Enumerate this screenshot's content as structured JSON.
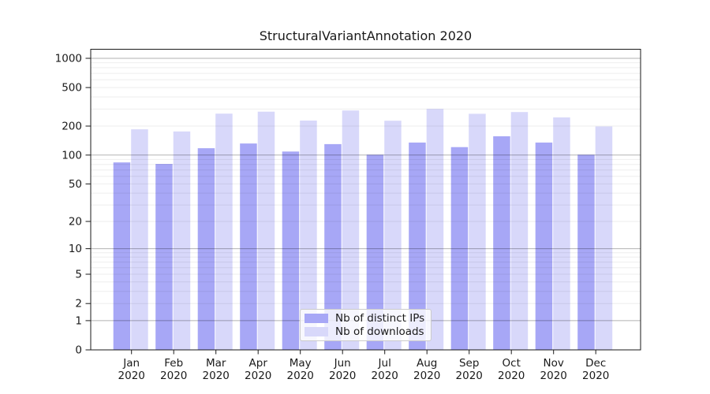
{
  "title": "StructuralVariantAnnotation 2020",
  "colors": {
    "ips_bar": "#a7a7f6",
    "downloads_bar": "#d8d8fa",
    "grid_major": "rgba(0,0,0,0.30)",
    "grid_minor": "rgba(0,0,0,0.07)",
    "axis_line": "#1a1a1a",
    "text": "#1a1a1a",
    "legend_border": "#cbcbcb",
    "legend_bg": "rgba(255,255,255,0.8)"
  },
  "legend": {
    "items": [
      {
        "label": "Nb of distinct IPs",
        "series": "ips"
      },
      {
        "label": "Nb of downloads",
        "series": "downloads"
      }
    ]
  },
  "chart_data": {
    "type": "bar",
    "title": "StructuralVariantAnnotation 2020",
    "categories": [
      "Jan 2020",
      "Feb 2020",
      "Mar 2020",
      "Apr 2020",
      "May 2020",
      "Jun 2020",
      "Jul 2020",
      "Aug 2020",
      "Sep 2020",
      "Oct 2020",
      "Nov 2020",
      "Dec 2020"
    ],
    "series": [
      {
        "name": "Nb of distinct IPs",
        "values": [
          84,
          81,
          118,
          132,
          109,
          130,
          101,
          135,
          121,
          157,
          135,
          101
        ]
      },
      {
        "name": "Nb of downloads",
        "values": [
          185,
          176,
          269,
          282,
          228,
          290,
          227,
          301,
          268,
          279,
          246,
          198
        ]
      }
    ],
    "yscale": "log1p",
    "yticks": [
      0,
      1,
      2,
      5,
      10,
      20,
      50,
      100,
      200,
      500,
      1000
    ],
    "ylim": [
      0,
      1240
    ],
    "grid": true,
    "legend_position": "lower center"
  }
}
